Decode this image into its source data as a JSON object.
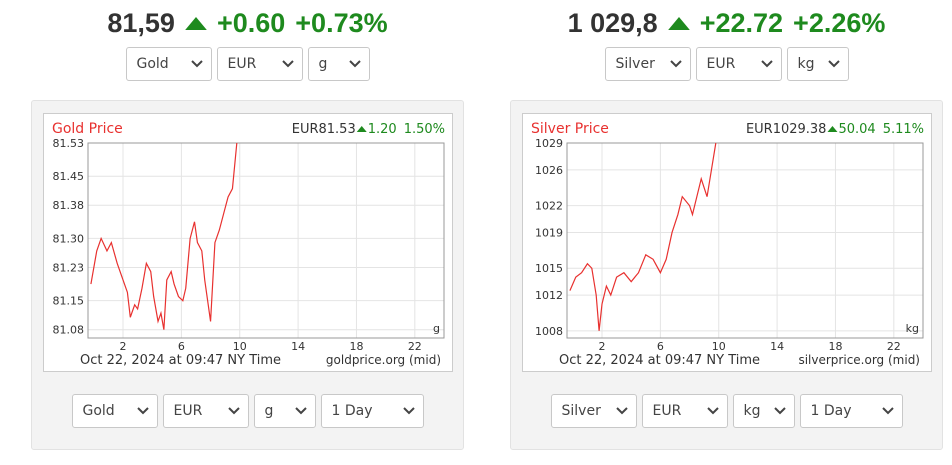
{
  "widgets": [
    {
      "header": {
        "price": "81,59",
        "change": "+0.60",
        "percent": "+0.73%"
      },
      "selectors": [
        "Gold",
        "EUR",
        "g"
      ],
      "chart": {
        "type": "line",
        "title": "Gold Price",
        "price": "EUR81.53",
        "change": "1.20",
        "percent": "1.50%",
        "x": [
          -0.2,
          0.2,
          0.5,
          0.9,
          1.2,
          1.6,
          2.0,
          2.3,
          2.5,
          2.8,
          3.0,
          3.3,
          3.6,
          3.9,
          4.1,
          4.4,
          4.6,
          4.8,
          5.0,
          5.3,
          5.5,
          5.8,
          6.1,
          6.3,
          6.6,
          6.9,
          7.1,
          7.4,
          7.6,
          7.8,
          8.0,
          8.3,
          8.6,
          8.9,
          9.2,
          9.5,
          9.8
        ],
        "values": [
          81.19,
          81.27,
          81.3,
          81.27,
          81.29,
          81.24,
          81.2,
          81.17,
          81.11,
          81.14,
          81.13,
          81.18,
          81.24,
          81.22,
          81.16,
          81.1,
          81.12,
          81.08,
          81.2,
          81.22,
          81.19,
          81.16,
          81.15,
          81.18,
          81.3,
          81.34,
          81.29,
          81.27,
          81.2,
          81.15,
          81.1,
          81.29,
          81.32,
          81.36,
          81.4,
          81.42,
          81.53
        ],
        "color": "#e8312f",
        "xlim": [
          -0.4,
          24
        ],
        "ylim": [
          81.06,
          81.53
        ],
        "xticks": [
          2,
          6,
          10,
          14,
          18,
          22
        ],
        "yticks": [
          81.53,
          81.45,
          81.38,
          {
            "value": 81.3,
            "label": "81.30"
          },
          81.23,
          81.15,
          81.08
        ],
        "grid": true,
        "unit": "g",
        "timestamp": "Oct 22, 2024 at 09:47 NY Time",
        "source": "goldprice.org (mid)"
      },
      "controls": [
        "Gold",
        "EUR",
        "g",
        "1 Day"
      ]
    },
    {
      "header": {
        "price": "1 029,8",
        "change": "+22.72",
        "percent": "+2.26%"
      },
      "selectors": [
        "Silver",
        "EUR",
        "kg"
      ],
      "chart": {
        "type": "line",
        "title": "Silver Price",
        "price": "EUR1029.38",
        "change": "50.04",
        "percent": "5.11%",
        "x": [
          -0.2,
          0.2,
          0.6,
          1.0,
          1.3,
          1.6,
          1.8,
          2.0,
          2.3,
          2.6,
          3.0,
          3.5,
          4.0,
          4.5,
          5.0,
          5.5,
          6.0,
          6.4,
          6.8,
          7.2,
          7.5,
          8.0,
          8.2,
          8.5,
          8.8,
          9.2,
          9.5,
          9.8
        ],
        "values": [
          1012.5,
          1014,
          1014.5,
          1015.5,
          1015,
          1012,
          1008,
          1011,
          1013,
          1012,
          1014,
          1014.5,
          1013.5,
          1014.5,
          1016.5,
          1016,
          1014.5,
          1016,
          1019,
          1021,
          1023,
          1022,
          1021,
          1023,
          1025,
          1023,
          1026,
          1029
        ],
        "color": "#e8312f",
        "xlim": [
          -0.4,
          24
        ],
        "ylim": [
          1007.2,
          1029
        ],
        "xticks": [
          2,
          6,
          10,
          14,
          18,
          22
        ],
        "yticks": [
          1029,
          1026,
          1022,
          1019,
          1015,
          1012,
          1008
        ],
        "grid": true,
        "unit": "kg",
        "timestamp": "Oct 22, 2024 at 09:47 NY Time",
        "source": "silverprice.org (mid)"
      },
      "controls": [
        "Silver",
        "EUR",
        "kg",
        "1 Day"
      ]
    }
  ]
}
